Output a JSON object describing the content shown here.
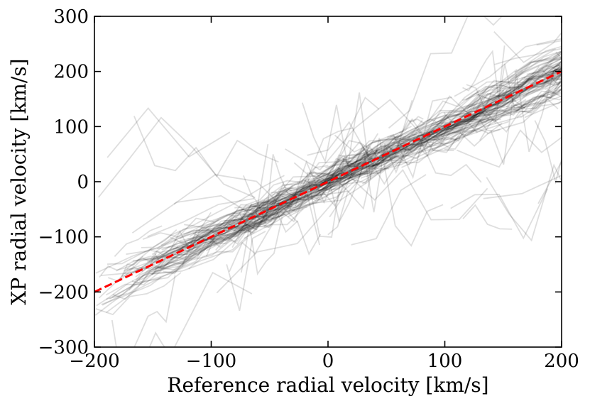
{
  "chart_data": {
    "type": "line",
    "title": "",
    "xlabel": "Reference radial velocity [km/s]",
    "ylabel": "XP radial velocity [km/s]",
    "xlim": [
      -200,
      200
    ],
    "ylim": [
      -300,
      300
    ],
    "xticks": [
      -200,
      -100,
      0,
      100,
      200
    ],
    "yticks": [
      -300,
      -200,
      -100,
      0,
      100,
      200,
      300
    ],
    "xtick_labels": [
      "−200",
      "−100",
      "0",
      "100",
      "200"
    ],
    "ytick_labels": [
      "−300",
      "−200",
      "−100",
      "0",
      "100",
      "200",
      "300"
    ],
    "grid": false,
    "legend": "none",
    "series": [
      {
        "style": "many semi-transparent black lines (individual star tracks clustered around y = x, scatter growing toward the ends)",
        "color": "#000000",
        "opacity": 0.13,
        "count_approx": 400,
        "trend": {
          "x": [
            -200,
            -100,
            0,
            100,
            200
          ],
          "y": [
            -200,
            -100,
            0,
            100,
            200
          ]
        }
      },
      {
        "style": "dashed reference line y = x",
        "color": "#ff0000",
        "x": [
          -200,
          200
        ],
        "y": [
          -200,
          200
        ]
      }
    ]
  }
}
